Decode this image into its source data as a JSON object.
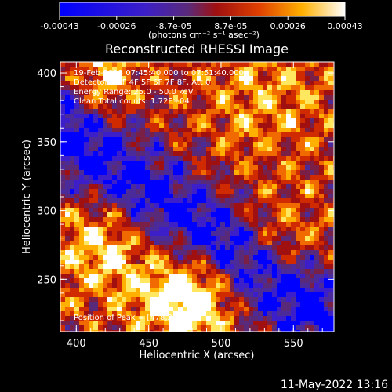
{
  "chart_data": {
    "type": "heatmap",
    "title": "Reconstructed RHESSI Image",
    "xlabel": "Heliocentric X (arcsec)",
    "ylabel": "Heliocentric Y (arcsec)",
    "xlim": [
      389,
      578
    ],
    "ylim": [
      212,
      408
    ],
    "xticks": [
      400,
      450,
      500,
      550
    ],
    "yticks": [
      250,
      300,
      350,
      400
    ],
    "colorbar": {
      "min": -0.00043,
      "max": 0.00043,
      "tick_labels": [
        "-0.00043",
        "-0.00026",
        "-8.7e-05",
        "8.7e-05",
        "0.00026",
        "0.00043"
      ],
      "unit_text": "(photons cm⁻² s⁻¹ asec⁻²)"
    },
    "info_lines": [
      "19-Feb-2013 07:45:40.000 to 07:51:40.000",
      "Detectors: 3F 4F 5F 6F 7F 8F, Att 0",
      "Energy Range: 25.0 - 50.0 keV",
      "Clean     Total counts: 1.72E+04"
    ],
    "peak_label": "Position of Peak = [478,236]",
    "peak": [
      478,
      236
    ],
    "colors": [
      "#0000ff",
      "#3c1fc8",
      "#4b2a9a",
      "#5a2a7a",
      "#7a1f45",
      "#a01010",
      "#d02a00",
      "#f06a00",
      "#ffb000",
      "#ffe860",
      "#ffffff"
    ]
  },
  "footer": {
    "timestamp": "11-May-2022 13:16"
  }
}
